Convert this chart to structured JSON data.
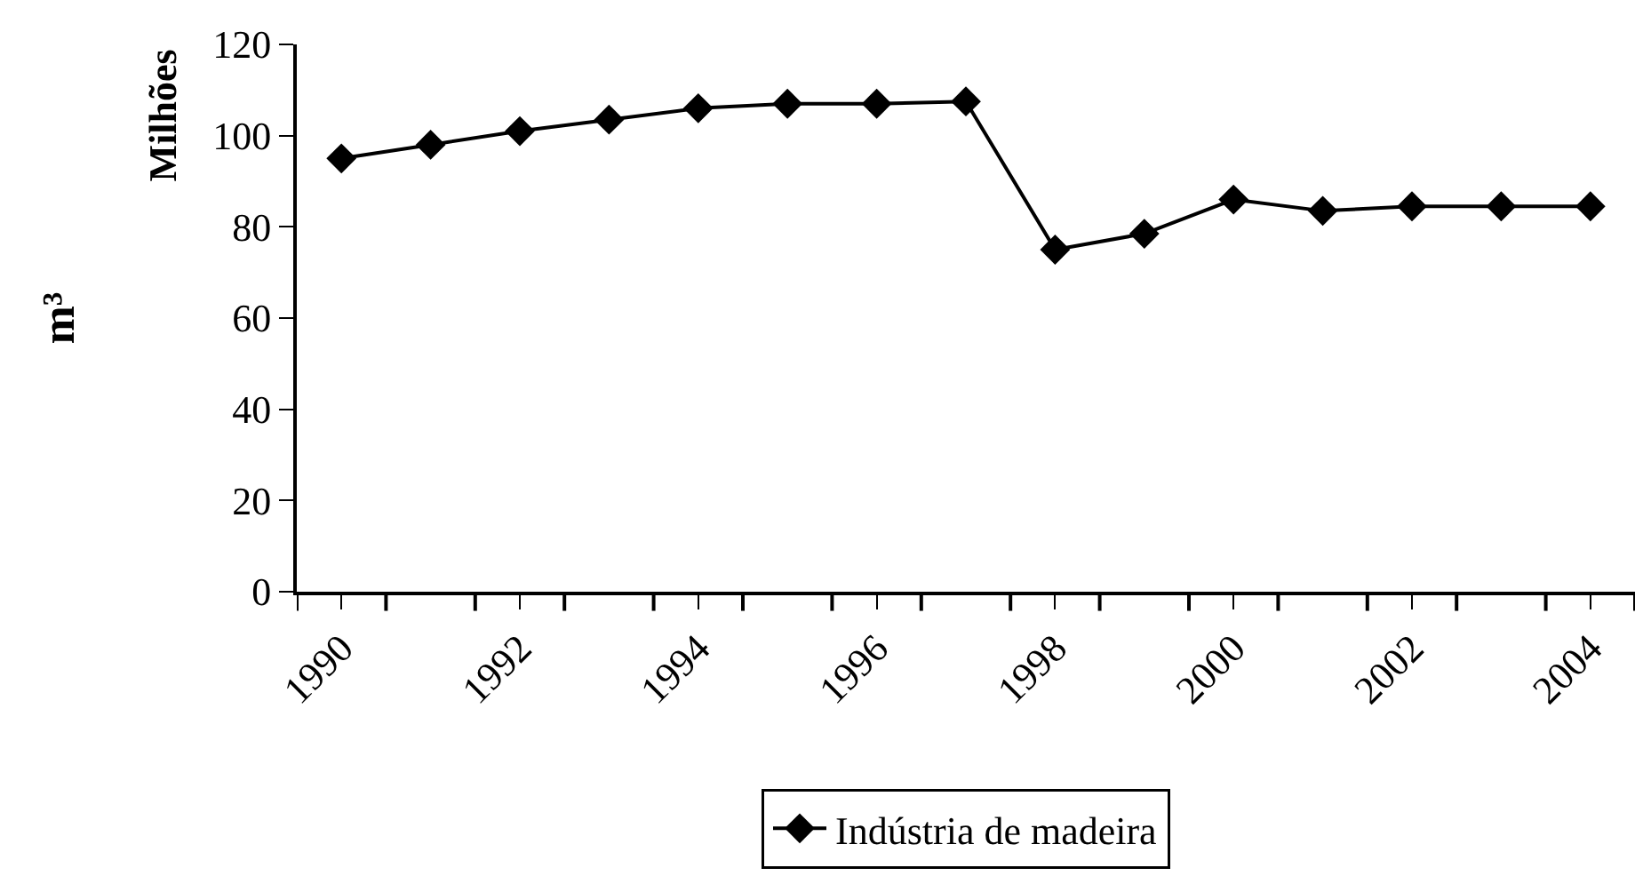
{
  "chart_data": {
    "type": "line",
    "categories": [
      "1990",
      null,
      "1992",
      null,
      "1994",
      null,
      "1996",
      null,
      "1998",
      null,
      "2000",
      null,
      "2002",
      null,
      "2004"
    ],
    "series": [
      {
        "name": "Indústria de madeira",
        "color": "#000000",
        "values": [
          95,
          98,
          101,
          103.5,
          106,
          107,
          107,
          107.5,
          75,
          78.5,
          86,
          83.5,
          84.5,
          84.5,
          84.5
        ]
      }
    ],
    "ylabel": "m³",
    "annotations": [
      "Milhões"
    ],
    "ylim": [
      0,
      120
    ],
    "yticks": [
      0,
      20,
      40,
      60,
      80,
      100,
      120
    ],
    "legend": "bottom",
    "marker": "diamond",
    "line_style": "solid"
  }
}
